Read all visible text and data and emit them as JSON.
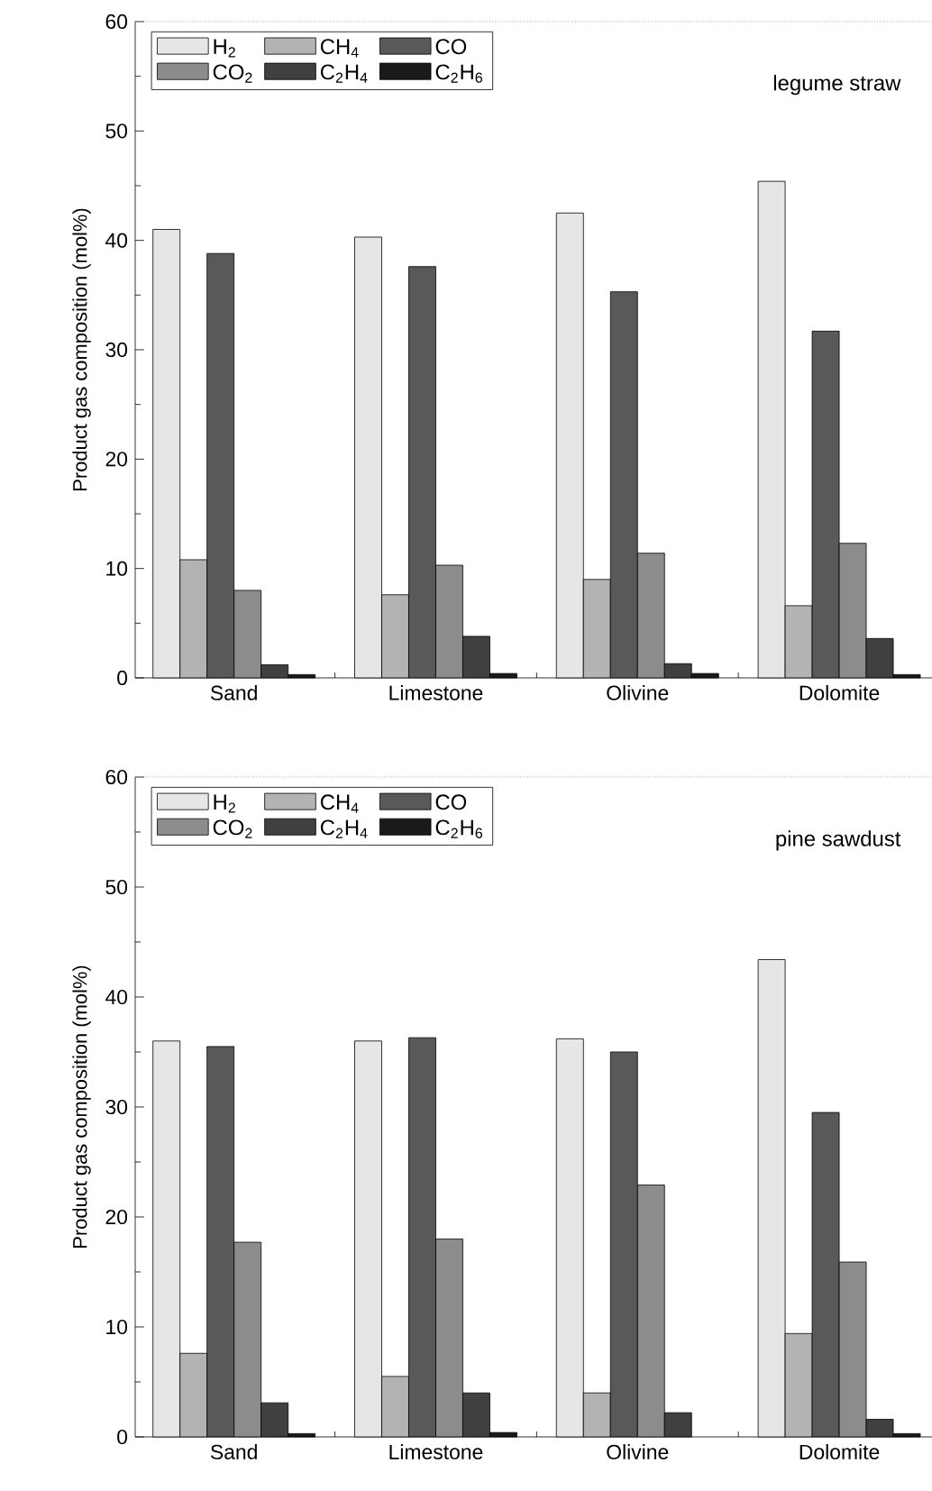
{
  "chart_data": [
    {
      "type": "bar",
      "categories": [
        "Sand",
        "Limestone",
        "Olivine",
        "Dolomite"
      ],
      "ylabel": "Product gas composition (mol%)",
      "ylim": [
        0,
        60
      ],
      "yticks": [
        0,
        10,
        20,
        30,
        40,
        50,
        60
      ],
      "legend": "top left",
      "annotations": [
        "legume straw"
      ],
      "series": [
        {
          "name": "H$_{2}$",
          "color": "#e6e6e6",
          "values": [
            41,
            40.3,
            42.5,
            45.4
          ]
        },
        {
          "name": "CH$_{4}$",
          "color": "#b3b3b3",
          "values": [
            10.8,
            7.6,
            9,
            6.6
          ]
        },
        {
          "name": "CO",
          "color": "#595959",
          "values": [
            38.8,
            37.6,
            35.3,
            31.7
          ]
        },
        {
          "name": "CO$_{2}$",
          "color": "#8c8c8c",
          "values": [
            8,
            10.3,
            11.4,
            12.3
          ]
        },
        {
          "name": "C$_{2}$H$_{4}$",
          "color": "#404040",
          "values": [
            1.2,
            3.8,
            1.3,
            3.6
          ]
        },
        {
          "name": "C$_{2}$H$_{6}$",
          "color": "#1a1a1a",
          "values": [
            0.3,
            0.4,
            0.4,
            0.3
          ]
        }
      ]
    },
    {
      "type": "bar",
      "categories": [
        "Sand",
        "Limestone",
        "Olivine",
        "Dolomite"
      ],
      "ylabel": "Product gas composition (mol%)",
      "ylim": [
        0,
        60
      ],
      "yticks": [
        0,
        10,
        20,
        30,
        40,
        50,
        60
      ],
      "legend": "top left",
      "annotations": [
        "pine sawdust"
      ],
      "series": [
        {
          "name": "H$_{2}$",
          "color": "#e6e6e6",
          "values": [
            36,
            36,
            36.2,
            43.4
          ]
        },
        {
          "name": "CH$_{4}$",
          "color": "#b3b3b3",
          "values": [
            7.6,
            5.5,
            4,
            9.4
          ]
        },
        {
          "name": "CO",
          "color": "#595959",
          "values": [
            35.5,
            36.3,
            35,
            29.5
          ]
        },
        {
          "name": "CO$_{2}$",
          "color": "#8c8c8c",
          "values": [
            17.7,
            18,
            22.9,
            15.9
          ]
        },
        {
          "name": "C$_{2}$H$_{4}$",
          "color": "#404040",
          "values": [
            3.1,
            4,
            2.2,
            1.6
          ]
        },
        {
          "name": "C$_{2}$H$_{6}$",
          "color": "#1a1a1a",
          "values": [
            0.3,
            0.4,
            null,
            0.3
          ]
        }
      ]
    }
  ]
}
